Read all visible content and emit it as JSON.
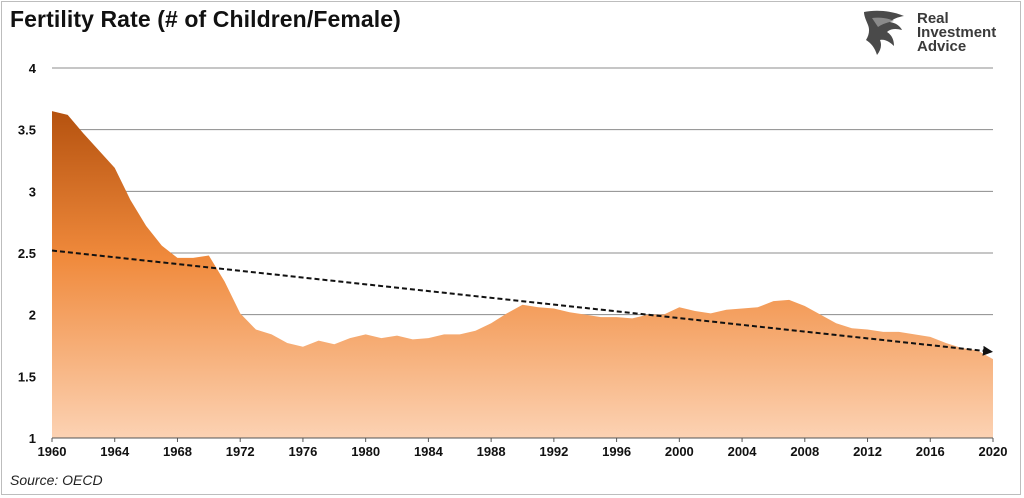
{
  "title": "Fertility Rate (# of Children/Female)",
  "brand": {
    "line1": "Real",
    "line2": "Investment",
    "line3": "Advice"
  },
  "source": "Source: OECD",
  "colors": {
    "area_top": "#b5520f",
    "area_mid": "#f08a3c",
    "area_bottom": "#fcd2b3",
    "trend": "#111111",
    "grid": "#8c8c8c"
  },
  "chart_data": {
    "type": "area",
    "title": "Fertility Rate (# of Children/Female)",
    "xlabel": "",
    "ylabel": "",
    "xlim": [
      1960,
      2020
    ],
    "ylim": [
      1,
      4
    ],
    "yticks": [
      "1",
      "1.5",
      "2",
      "2.5",
      "3",
      "3.5",
      "4"
    ],
    "xticks": [
      "1960",
      "1964",
      "1968",
      "1972",
      "1976",
      "1980",
      "1984",
      "1988",
      "1992",
      "1996",
      "2000",
      "2004",
      "2008",
      "2012",
      "2016",
      "2020"
    ],
    "grid": true,
    "x": [
      1960,
      1961,
      1962,
      1963,
      1964,
      1965,
      1966,
      1967,
      1968,
      1969,
      1970,
      1971,
      1972,
      1973,
      1974,
      1975,
      1976,
      1977,
      1978,
      1979,
      1980,
      1981,
      1982,
      1983,
      1984,
      1985,
      1986,
      1987,
      1988,
      1989,
      1990,
      1991,
      1992,
      1993,
      1994,
      1995,
      1996,
      1997,
      1998,
      1999,
      2000,
      2001,
      2002,
      2003,
      2004,
      2005,
      2006,
      2007,
      2008,
      2009,
      2010,
      2011,
      2012,
      2013,
      2014,
      2015,
      2016,
      2017,
      2018,
      2019,
      2020
    ],
    "series": [
      {
        "values": [
          3.65,
          3.62,
          3.47,
          3.33,
          3.19,
          2.93,
          2.72,
          2.56,
          2.46,
          2.46,
          2.48,
          2.27,
          2.01,
          1.88,
          1.84,
          1.77,
          1.74,
          1.79,
          1.76,
          1.81,
          1.84,
          1.81,
          1.83,
          1.8,
          1.81,
          1.84,
          1.84,
          1.87,
          1.93,
          2.01,
          2.08,
          2.06,
          2.05,
          2.02,
          2.0,
          1.98,
          1.98,
          1.97,
          2.0,
          2.0,
          2.06,
          2.03,
          2.01,
          2.04,
          2.05,
          2.06,
          2.11,
          2.12,
          2.07,
          2.0,
          1.93,
          1.89,
          1.88,
          1.86,
          1.86,
          1.84,
          1.82,
          1.77,
          1.73,
          1.71,
          1.64
        ]
      },
      {
        "type": "trend",
        "start": [
          1960,
          2.52
        ],
        "end": [
          2020,
          1.7
        ]
      }
    ]
  }
}
